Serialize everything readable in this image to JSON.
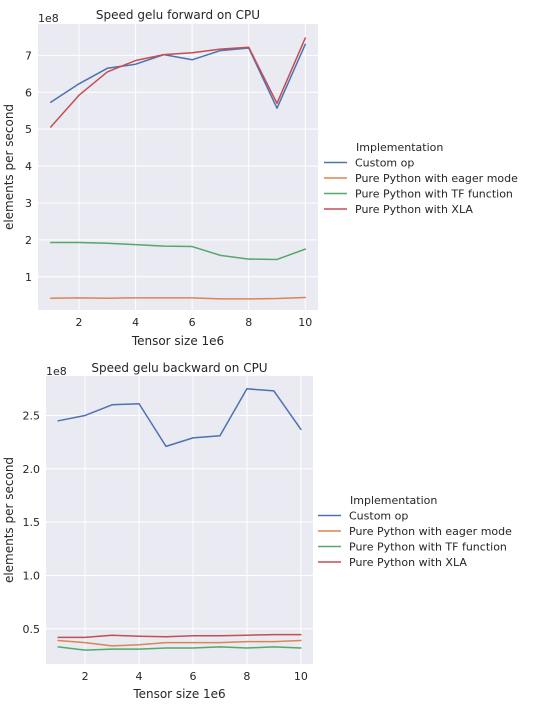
{
  "chart_data": [
    {
      "type": "line",
      "title": "Speed gelu forward on CPU",
      "xlabel": "Tensor size 1e6",
      "ylabel": "elements per second",
      "y_scale_label": "1e8",
      "xlim": [
        0.55,
        10.45
      ],
      "ylim": [
        0.1,
        7.85
      ],
      "x_ticks": [
        2,
        4,
        6,
        8,
        10
      ],
      "y_ticks": [
        1,
        2,
        3,
        4,
        5,
        6,
        7
      ],
      "grid": true,
      "legend_title": "Implementation",
      "legend_position": "right",
      "x": [
        1,
        2,
        3,
        4,
        5,
        6,
        7,
        8,
        9,
        10
      ],
      "series": [
        {
          "name": "Custom op",
          "color": "#4c72b0",
          "values": [
            5.73,
            6.23,
            6.65,
            6.76,
            7.02,
            6.88,
            7.13,
            7.2,
            5.57,
            7.3
          ]
        },
        {
          "name": "Pure Python with eager mode",
          "color": "#dd8452",
          "values": [
            0.42,
            0.43,
            0.42,
            0.43,
            0.43,
            0.43,
            0.4,
            0.4,
            0.41,
            0.44
          ]
        },
        {
          "name": "Pure Python with TF function",
          "color": "#55a868",
          "values": [
            1.93,
            1.93,
            1.91,
            1.87,
            1.83,
            1.82,
            1.58,
            1.48,
            1.47,
            1.75
          ]
        },
        {
          "name": "Pure Python with XLA",
          "color": "#c44e52",
          "values": [
            5.06,
            5.92,
            6.55,
            6.86,
            7.02,
            7.07,
            7.17,
            7.22,
            5.7,
            7.47
          ]
        }
      ]
    },
    {
      "type": "line",
      "title": "Speed gelu backward on CPU",
      "xlabel": "Tensor size 1e6",
      "ylabel": "elements per second",
      "y_scale_label": "1e8",
      "xlim": [
        0.55,
        10.45
      ],
      "ylim": [
        0.17,
        2.87
      ],
      "x_ticks": [
        2,
        4,
        6,
        8,
        10
      ],
      "y_ticks": [
        0.5,
        1.0,
        1.5,
        2.0,
        2.5
      ],
      "y_tick_labels": [
        "0.5",
        "1.0",
        "1.5",
        "2.0",
        "2.5"
      ],
      "grid": true,
      "legend_title": "Implementation",
      "legend_position": "right",
      "x": [
        1,
        2,
        3,
        4,
        5,
        6,
        7,
        8,
        9,
        10
      ],
      "series": [
        {
          "name": "Custom op",
          "color": "#4c72b0",
          "values": [
            2.45,
            2.5,
            2.6,
            2.61,
            2.21,
            2.29,
            2.31,
            2.75,
            2.73,
            2.37
          ]
        },
        {
          "name": "Pure Python with eager mode",
          "color": "#dd8452",
          "values": [
            0.39,
            0.37,
            0.34,
            0.35,
            0.37,
            0.37,
            0.37,
            0.38,
            0.38,
            0.39
          ]
        },
        {
          "name": "Pure Python with TF function",
          "color": "#55a868",
          "values": [
            0.33,
            0.3,
            0.31,
            0.31,
            0.32,
            0.32,
            0.33,
            0.32,
            0.33,
            0.32
          ]
        },
        {
          "name": "Pure Python with XLA",
          "color": "#c44e52",
          "values": [
            0.42,
            0.42,
            0.44,
            0.43,
            0.425,
            0.435,
            0.435,
            0.44,
            0.445,
            0.445
          ]
        }
      ]
    }
  ]
}
